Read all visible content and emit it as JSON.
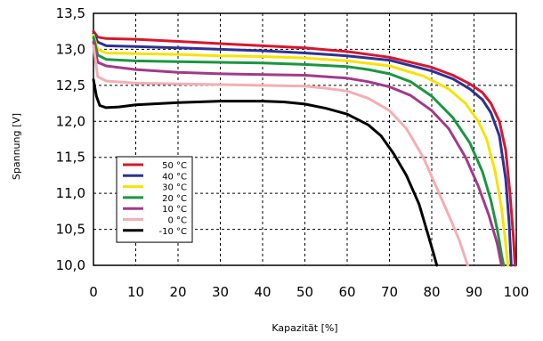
{
  "chart_data": {
    "type": "line",
    "title": "",
    "xlabel": "Kapazität [%]",
    "ylabel": "Spannung [V]",
    "xlim": [
      0,
      100
    ],
    "ylim": [
      10.0,
      13.5
    ],
    "x_ticks": [
      "0",
      "10",
      "20",
      "30",
      "40",
      "50",
      "60",
      "70",
      "80",
      "90",
      "100"
    ],
    "y_ticks": [
      "10,0",
      "10,5",
      "11,0",
      "11,5",
      "12,0",
      "12,5",
      "13,0",
      "13,5"
    ],
    "grid": true,
    "grid_style": "dashed",
    "legend_position": "left-middle",
    "series": [
      {
        "name": "50 °C",
        "color": "#d7172f",
        "points": [
          [
            0,
            13.25
          ],
          [
            1,
            13.17
          ],
          [
            3,
            13.15
          ],
          [
            10,
            13.14
          ],
          [
            20,
            13.11
          ],
          [
            30,
            13.08
          ],
          [
            40,
            13.05
          ],
          [
            50,
            13.02
          ],
          [
            60,
            12.97
          ],
          [
            70,
            12.89
          ],
          [
            80,
            12.75
          ],
          [
            85,
            12.64
          ],
          [
            89,
            12.52
          ],
          [
            92,
            12.4
          ],
          [
            94,
            12.25
          ],
          [
            96,
            12.0
          ],
          [
            97.5,
            11.6
          ],
          [
            98.5,
            11.0
          ],
          [
            99.3,
            10.4
          ],
          [
            99.7,
            10.0
          ]
        ]
      },
      {
        "name": "40 °C",
        "color": "#2e3192",
        "points": [
          [
            0,
            13.22
          ],
          [
            1,
            13.1
          ],
          [
            3,
            13.05
          ],
          [
            10,
            13.04
          ],
          [
            20,
            13.02
          ],
          [
            30,
            13.0
          ],
          [
            40,
            12.98
          ],
          [
            50,
            12.95
          ],
          [
            60,
            12.91
          ],
          [
            70,
            12.85
          ],
          [
            80,
            12.7
          ],
          [
            85,
            12.59
          ],
          [
            89,
            12.45
          ],
          [
            92,
            12.3
          ],
          [
            94,
            12.12
          ],
          [
            96,
            11.8
          ],
          [
            97.5,
            11.2
          ],
          [
            98.3,
            10.6
          ],
          [
            98.8,
            10.0
          ]
        ]
      },
      {
        "name": "30 °C",
        "color": "#f7e200",
        "points": [
          [
            0,
            13.2
          ],
          [
            1,
            13.0
          ],
          [
            3,
            12.95
          ],
          [
            10,
            12.94
          ],
          [
            20,
            12.93
          ],
          [
            30,
            12.91
          ],
          [
            40,
            12.9
          ],
          [
            50,
            12.88
          ],
          [
            60,
            12.84
          ],
          [
            70,
            12.77
          ],
          [
            78,
            12.63
          ],
          [
            84,
            12.45
          ],
          [
            88,
            12.25
          ],
          [
            91,
            12.0
          ],
          [
            93,
            11.75
          ],
          [
            95,
            11.3
          ],
          [
            96.5,
            10.8
          ],
          [
            97.5,
            10.3
          ],
          [
            98,
            10.0
          ]
        ]
      },
      {
        "name": "20 °C",
        "color": "#1a9641",
        "points": [
          [
            0,
            13.17
          ],
          [
            1,
            12.92
          ],
          [
            3,
            12.86
          ],
          [
            10,
            12.84
          ],
          [
            20,
            12.83
          ],
          [
            30,
            12.82
          ],
          [
            40,
            12.81
          ],
          [
            50,
            12.79
          ],
          [
            60,
            12.76
          ],
          [
            65,
            12.72
          ],
          [
            70,
            12.66
          ],
          [
            75,
            12.55
          ],
          [
            80,
            12.35
          ],
          [
            85,
            12.05
          ],
          [
            89,
            11.7
          ],
          [
            92,
            11.3
          ],
          [
            94,
            10.9
          ],
          [
            95.5,
            10.5
          ],
          [
            96.5,
            10.15
          ],
          [
            97,
            10.0
          ]
        ]
      },
      {
        "name": "10 °C",
        "color": "#a3398a",
        "points": [
          [
            0,
            13.1
          ],
          [
            1,
            12.82
          ],
          [
            3,
            12.77
          ],
          [
            10,
            12.72
          ],
          [
            20,
            12.68
          ],
          [
            30,
            12.66
          ],
          [
            40,
            12.65
          ],
          [
            50,
            12.64
          ],
          [
            60,
            12.6
          ],
          [
            65,
            12.55
          ],
          [
            70,
            12.48
          ],
          [
            75,
            12.36
          ],
          [
            80,
            12.15
          ],
          [
            84,
            11.9
          ],
          [
            88,
            11.5
          ],
          [
            91,
            11.1
          ],
          [
            93.5,
            10.7
          ],
          [
            95.5,
            10.3
          ],
          [
            96.5,
            10.0
          ]
        ]
      },
      {
        "name": "0 °C",
        "color": "#f4aeb4",
        "points": [
          [
            0,
            13.05
          ],
          [
            1,
            12.62
          ],
          [
            3,
            12.56
          ],
          [
            10,
            12.53
          ],
          [
            20,
            12.52
          ],
          [
            30,
            12.51
          ],
          [
            40,
            12.5
          ],
          [
            50,
            12.49
          ],
          [
            55,
            12.46
          ],
          [
            60,
            12.42
          ],
          [
            65,
            12.32
          ],
          [
            70,
            12.15
          ],
          [
            74,
            11.9
          ],
          [
            78,
            11.5
          ],
          [
            81,
            11.1
          ],
          [
            84,
            10.7
          ],
          [
            86.5,
            10.35
          ],
          [
            88.5,
            10.0
          ]
        ]
      },
      {
        "name": "-10 °C",
        "color": "#000000",
        "points": [
          [
            0,
            12.58
          ],
          [
            0.7,
            12.35
          ],
          [
            1.5,
            12.22
          ],
          [
            3,
            12.19
          ],
          [
            6,
            12.2
          ],
          [
            10,
            12.23
          ],
          [
            20,
            12.26
          ],
          [
            30,
            12.28
          ],
          [
            40,
            12.28
          ],
          [
            45,
            12.27
          ],
          [
            50,
            12.24
          ],
          [
            55,
            12.18
          ],
          [
            60,
            12.1
          ],
          [
            65,
            11.95
          ],
          [
            68,
            11.8
          ],
          [
            71,
            11.55
          ],
          [
            74,
            11.25
          ],
          [
            77,
            10.85
          ],
          [
            79,
            10.45
          ],
          [
            80.5,
            10.15
          ],
          [
            81.2,
            10.0
          ]
        ]
      }
    ]
  }
}
